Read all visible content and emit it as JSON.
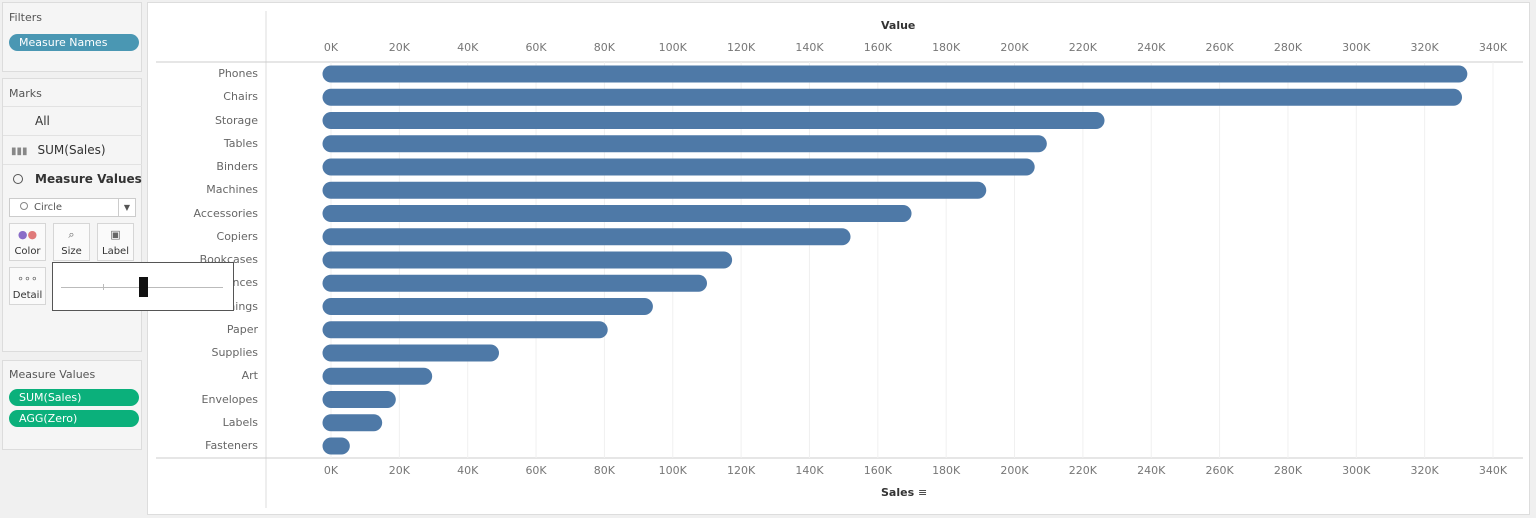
{
  "filters": {
    "title": "Filters",
    "pills": [
      "Measure Names"
    ]
  },
  "marks": {
    "title": "Marks",
    "rows": [
      {
        "label": "All"
      },
      {
        "label": "SUM(Sales)",
        "icon": "bar-chart-icon"
      },
      {
        "label": "Measure Values",
        "icon": "circle-icon"
      }
    ],
    "mark_type": "Circle",
    "buttons": {
      "color": "Color",
      "size": "Size",
      "label": "Label",
      "detail": "Detail"
    },
    "size_slider_value": 0.5
  },
  "measure_values": {
    "title": "Measure Values",
    "pills": [
      "SUM(Sales)",
      "AGG(Zero)"
    ]
  },
  "colors": {
    "filter_pill": "#4a97b3",
    "measure_pill": "#0bb07b",
    "bar": "#4e79a7"
  },
  "chart_data": {
    "type": "bar",
    "orientation": "horizontal",
    "top_axis_title": "Value",
    "xlabel": "Sales",
    "xlim": [
      0,
      340000
    ],
    "x_ticks": [
      "0K",
      "20K",
      "40K",
      "60K",
      "80K",
      "100K",
      "120K",
      "140K",
      "160K",
      "180K",
      "200K",
      "220K",
      "240K",
      "260K",
      "280K",
      "300K",
      "320K",
      "340K"
    ],
    "grid": true,
    "categories": [
      "Phones",
      "Chairs",
      "Storage",
      "Tables",
      "Binders",
      "Machines",
      "Accessories",
      "Copiers",
      "Bookcases",
      "Appliances",
      "Furnishings",
      "Paper",
      "Supplies",
      "Art",
      "Envelopes",
      "Labels",
      "Fasteners"
    ],
    "values": [
      330007,
      328449,
      223844,
      206966,
      203413,
      189239,
      167380,
      149528,
      114880,
      107532,
      91705,
      78479,
      46674,
      27119,
      16476,
      12486,
      3024
    ]
  }
}
